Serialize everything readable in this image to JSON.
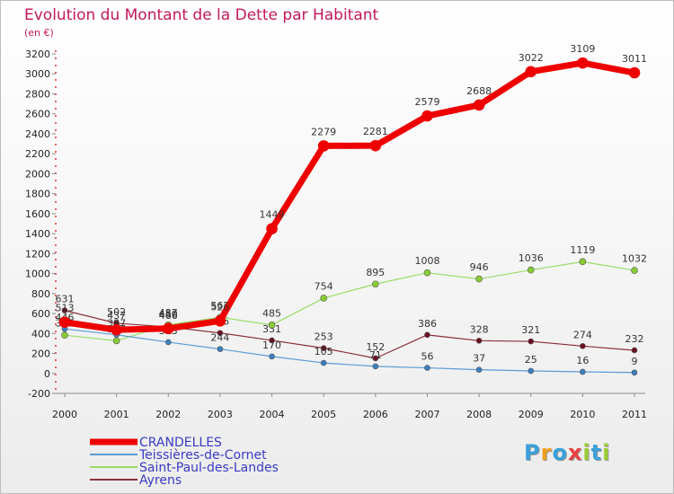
{
  "title": "Evolution du Montant de la Dette par Habitant",
  "subtitle": "(en €)",
  "logo": {
    "text": "Proxiti",
    "letters": [
      {
        "ch": "P",
        "color": "#3aa0d8"
      },
      {
        "ch": "r",
        "color": "#f0a020"
      },
      {
        "ch": "o",
        "color": "#3aa0d8"
      },
      {
        "ch": "x",
        "color": "#e84040"
      },
      {
        "ch": "i",
        "color": "#9acd32"
      },
      {
        "ch": "t",
        "color": "#3aa0d8"
      },
      {
        "ch": "i",
        "color": "#9acd32"
      }
    ]
  },
  "chart_data": {
    "type": "line",
    "title": "Evolution du Montant de la Dette par Habitant",
    "subtitle": "(en €)",
    "x": [
      "2000",
      "2001",
      "2002",
      "2003",
      "2004",
      "2005",
      "2006",
      "2007",
      "2008",
      "2009",
      "2010",
      "2011"
    ],
    "ylim": [
      -200,
      3200
    ],
    "yticks": [
      -200,
      0,
      200,
      400,
      600,
      800,
      1000,
      1200,
      1400,
      1600,
      1800,
      2000,
      2200,
      2400,
      2600,
      2800,
      3000,
      3200
    ],
    "grid": false,
    "legend": "bottom-left",
    "series": [
      {
        "name": "Ayrens",
        "color": "#8b2f3a",
        "marker": "#6b1020",
        "width": 1.2,
        "r": 3,
        "values": [
          631,
          502,
          466,
          405,
          331,
          253,
          152,
          386,
          328,
          321,
          274,
          232
        ],
        "labels": [
          "631",
          "502",
          "466",
          "405",
          "331",
          "253",
          "152",
          "386",
          "328",
          "321",
          "274",
          "232"
        ]
      },
      {
        "name": "Saint-Paul-des-Landes",
        "color": "#99dd66",
        "marker": "#88cc33",
        "width": 1.2,
        "r": 3.5,
        "values": [
          383,
          327,
          487,
          562,
          485,
          754,
          895,
          1008,
          946,
          1036,
          1119,
          1032
        ],
        "labels": [
          "383",
          "327",
          "487",
          "562",
          "485",
          "754",
          "895",
          "1008",
          "946",
          "1036",
          "1119",
          "1032"
        ]
      },
      {
        "name": "Teissières-de-Cornet",
        "color": "#5b9bd5",
        "marker": "#3a7fc1",
        "width": 1.2,
        "r": 3,
        "values": [
          446,
          387,
          313,
          244,
          170,
          105,
          71,
          56,
          37,
          25,
          16,
          9
        ],
        "labels": [
          "446",
          "387",
          "313",
          "244",
          "170",
          "105",
          "71",
          "56",
          "37",
          "25",
          "16",
          "9"
        ]
      },
      {
        "name": "CRANDELLES",
        "color": "#ee0000",
        "marker": "#ee0000",
        "width": 7,
        "r": 6,
        "values": [
          513,
          437,
          450,
          526,
          1449,
          2279,
          2281,
          2579,
          2688,
          3022,
          3109,
          3011
        ],
        "labels": [
          "513",
          "437",
          "450",
          "526",
          "1449",
          "2279",
          "2281",
          "2579",
          "2688",
          "3022",
          "3109",
          "3011"
        ]
      }
    ]
  },
  "legend": [
    {
      "name": "CRANDELLES",
      "color": "#ee0000"
    },
    {
      "name": "Teissières-de-Cornet",
      "color": "#5b9bd5"
    },
    {
      "name": "Saint-Paul-des-Landes",
      "color": "#99dd66"
    },
    {
      "name": "Ayrens",
      "color": "#8b2f3a"
    }
  ]
}
